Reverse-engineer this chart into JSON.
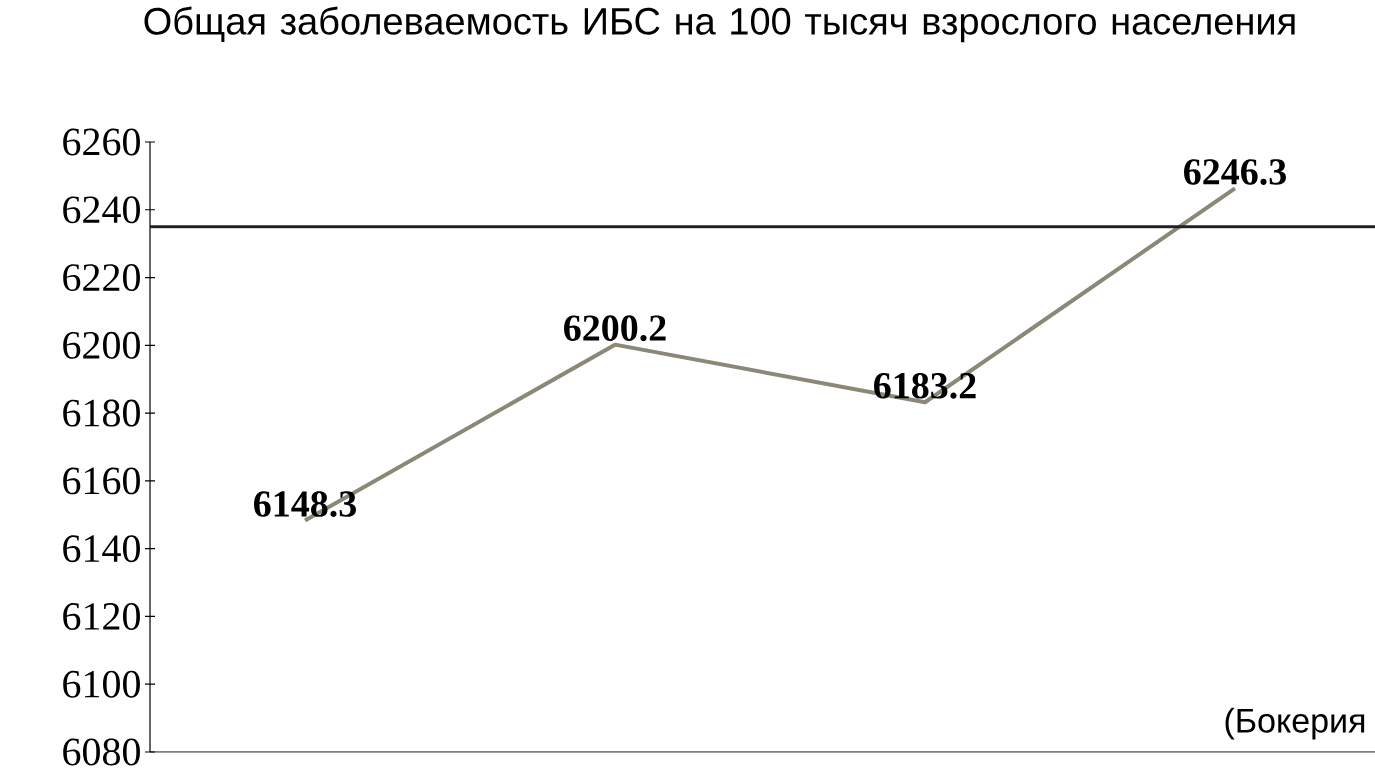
{
  "chart_data": {
    "type": "line",
    "title": "Общая заболеваемость ИБС на 100 тысяч взрослого населения",
    "categories": [
      null,
      null,
      null,
      null
    ],
    "values": [
      6148.3,
      6200.2,
      6183.2,
      6246.3
    ],
    "color": "#8b8878",
    "ylim": [
      6080,
      6260
    ],
    "yticks": [
      6080,
      6100,
      6120,
      6140,
      6160,
      6180,
      6200,
      6220,
      6240,
      6260
    ],
    "tick_labels": "y",
    "data_labels": true,
    "grid": false,
    "marker": "none",
    "line_style": "solid",
    "ref_lines": [
      {
        "axis": "y",
        "value": 6235,
        "color": "#231f20"
      }
    ],
    "annotations": [
      "(Бокерия"
    ]
  }
}
